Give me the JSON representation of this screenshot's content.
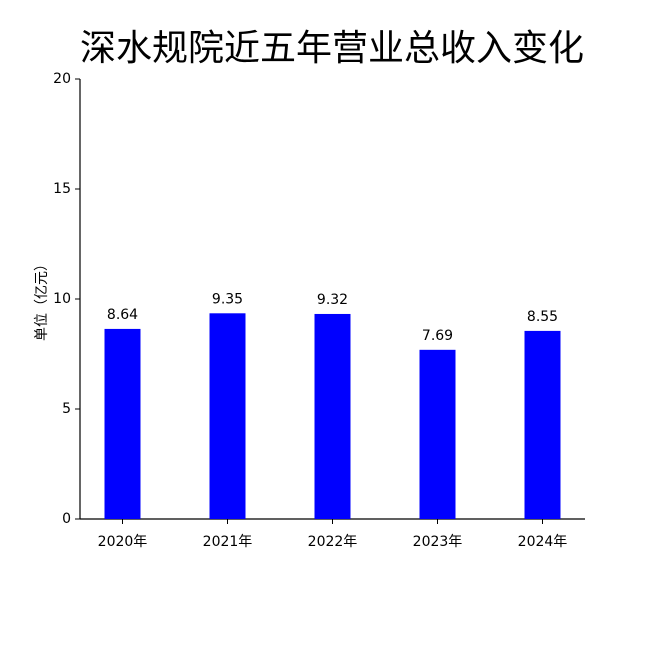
{
  "chart_data": {
    "type": "bar",
    "title": "深水规院近五年营业总收入变化",
    "y_label": "单位（亿元）",
    "categories": [
      "2020年",
      "2021年",
      "2022年",
      "2023年",
      "2024年"
    ],
    "values": [
      8.64,
      9.35,
      9.32,
      7.69,
      8.55
    ],
    "color": "#0000ff",
    "ylim": [
      0,
      20
    ],
    "yticks": [
      0,
      5,
      10,
      15,
      20
    ]
  }
}
